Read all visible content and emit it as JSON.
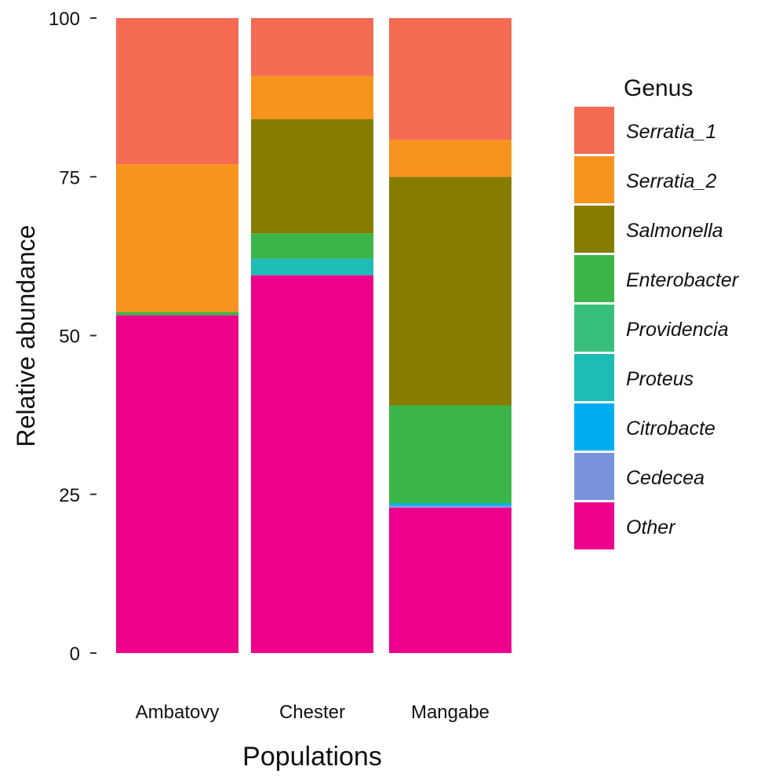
{
  "chart_data": {
    "type": "bar",
    "stacked": true,
    "categories": [
      "Ambatovy",
      "Chester",
      "Mangabe"
    ],
    "xlabel": "Populations",
    "ylabel": "Relative abundance",
    "ylim": [
      0,
      100
    ],
    "yticks": [
      0,
      25,
      50,
      75,
      100
    ],
    "grid": false,
    "legend": {
      "title": "Genus",
      "placement": "right"
    },
    "series": [
      {
        "name": "Other",
        "color": "#ec008c",
        "values": [
          53.2,
          59.5,
          22.9
        ]
      },
      {
        "name": "Cedecea",
        "color": "#7b93dd",
        "values": [
          0.0,
          0.0,
          0.3
        ]
      },
      {
        "name": "Citrobacte",
        "color": "#00aeef",
        "values": [
          0.0,
          0.0,
          0.4
        ]
      },
      {
        "name": "Proteus",
        "color": "#1dbcb4",
        "values": [
          0.0,
          2.6,
          0.0
        ]
      },
      {
        "name": "Providencia",
        "color": "#38c07a",
        "values": [
          0.0,
          0.0,
          0.0
        ]
      },
      {
        "name": "Enterobacter",
        "color": "#3bb54a",
        "values": [
          0.5,
          4.0,
          15.4
        ]
      },
      {
        "name": "Salmonella",
        "color": "#857c00",
        "values": [
          0.0,
          18.0,
          36.0
        ]
      },
      {
        "name": "Serratia_2",
        "color": "#f7941e",
        "values": [
          23.3,
          6.8,
          5.8
        ]
      },
      {
        "name": "Serratia_1",
        "color": "#f26b52",
        "values": [
          23.0,
          9.1,
          19.2
        ]
      }
    ]
  }
}
